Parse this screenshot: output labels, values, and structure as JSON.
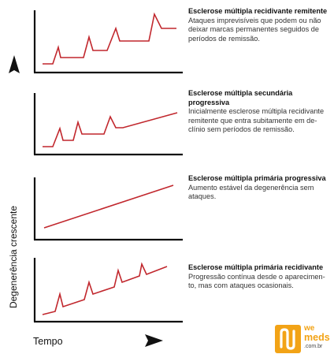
{
  "y_axis_label": "Degenerência crescente",
  "x_axis_label": "Tempo",
  "line_color": "#c1272d",
  "axis_color": "#111111",
  "panels": [
    {
      "title": "Esclerose múltipla recidivante remitente",
      "description": "Ataques imprevisíveis que podem ou não deixar marcas permanentes seguidos de períodos de remissão."
    },
    {
      "title": "Esclerose múltipla secundária progressiva",
      "description": "Inicialmente esclerose múltipla recidivante remitente que entra subitamente em de-clínio sem períodos de remissão."
    },
    {
      "title": "Esclerose múltipla primária progressiva",
      "description": "Aumento estável da degenerência sem ataques."
    },
    {
      "title": "Esclerose múltipla primária recidivante",
      "description": "Progressão contínua desde o aparecimen-to, mas com ataques ocasionais."
    }
  ],
  "logo": {
    "we": "we",
    "meds": "meds",
    "domain": ".com.br",
    "brand_color": "#f2a316"
  }
}
